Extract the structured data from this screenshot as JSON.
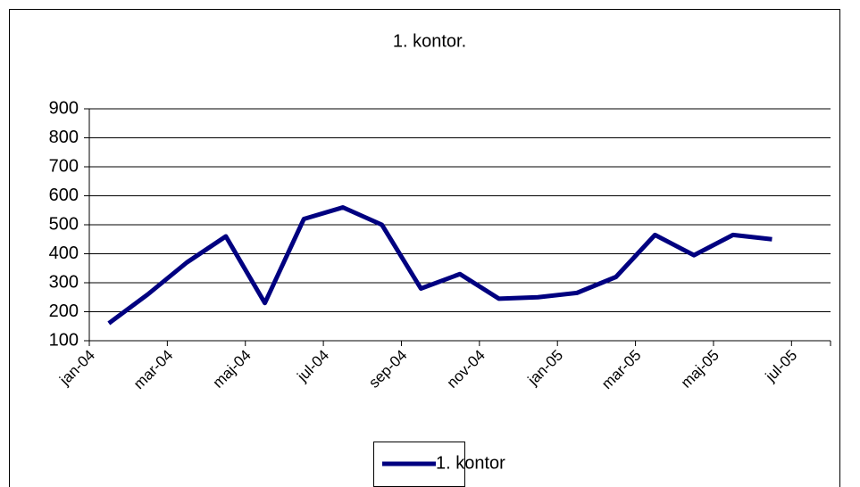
{
  "chart_data": {
    "type": "line",
    "title": "1. kontor.",
    "categories": [
      "jan-04",
      null,
      "mar-04",
      null,
      "maj-04",
      null,
      "jul-04",
      null,
      "sep-04",
      null,
      "nov-04",
      null,
      "jan-05",
      null,
      "mar-05",
      null,
      "maj-05",
      null,
      "jul-05"
    ],
    "series": [
      {
        "name": "1. kontor",
        "color": "#000080",
        "values": [
          160,
          260,
          370,
          460,
          230,
          520,
          560,
          500,
          280,
          330,
          245,
          250,
          265,
          320,
          465,
          395,
          465,
          450,
          null
        ]
      }
    ],
    "ylim": [
      100,
      900
    ],
    "yticks": [
      100,
      200,
      300,
      400,
      500,
      600,
      700,
      800,
      900
    ],
    "grid": true,
    "legend": "bottom"
  }
}
